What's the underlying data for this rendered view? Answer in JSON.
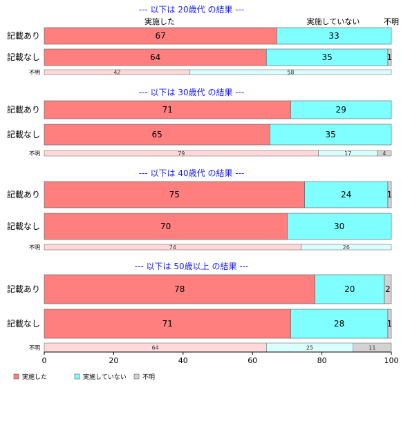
{
  "chart_data": {
    "type": "bar",
    "orientation": "horizontal-stacked-percent",
    "column_headers": [
      "実施した",
      "実施していない",
      "不明"
    ],
    "xlim": [
      0,
      100
    ],
    "xticks": [
      "0",
      "20",
      "40",
      "60",
      "80",
      "100"
    ],
    "grid": false,
    "legend_position": "bottom-left",
    "colors": [
      "#ff7f7f",
      "#7fffff",
      "#d3d3d3"
    ],
    "light_colors": [
      "#ffd9d9",
      "#d9ffff",
      "#d3d3d3"
    ],
    "legend": [
      "実施した",
      "実施していない",
      "不明"
    ],
    "groups": [
      {
        "title": "--- 以下は 20歳代 の結果 ---",
        "rows": [
          {
            "label": "記載あり",
            "values": [
              67,
              33,
              0.5
            ],
            "labels": [
              "67",
              "33",
              ""
            ]
          },
          {
            "label": "記載なし",
            "values": [
              64,
              35,
              1
            ],
            "labels": [
              "64",
              "35",
              "1"
            ]
          },
          {
            "label": "不明",
            "values": [
              42,
              58,
              0
            ],
            "labels": [
              "42",
              "58",
              ""
            ]
          }
        ]
      },
      {
        "title": "--- 以下は 30歳代 の結果 ---",
        "rows": [
          {
            "label": "記載あり",
            "values": [
              71,
              29,
              0
            ],
            "labels": [
              "71",
              "29",
              ""
            ]
          },
          {
            "label": "記載なし",
            "values": [
              65,
              35,
              0
            ],
            "labels": [
              "65",
              "35",
              ""
            ]
          },
          {
            "label": "不明",
            "values": [
              79,
              17,
              4
            ],
            "labels": [
              "79",
              "17",
              "4"
            ]
          }
        ]
      },
      {
        "title": "--- 以下は 40歳代 の結果 ---",
        "rows": [
          {
            "label": "記載あり",
            "values": [
              75,
              24,
              1
            ],
            "labels": [
              "75",
              "24",
              "1"
            ]
          },
          {
            "label": "記載なし",
            "values": [
              70,
              30,
              0.3
            ],
            "labels": [
              "70",
              "30",
              ""
            ]
          },
          {
            "label": "不明",
            "values": [
              74,
              26,
              0
            ],
            "labels": [
              "74",
              "26",
              ""
            ]
          }
        ]
      },
      {
        "title": "--- 以下は 50歳以上 の結果 ---",
        "rows": [
          {
            "label": "記載あり",
            "values": [
              78,
              20,
              2
            ],
            "labels": [
              "78",
              "20",
              "2"
            ]
          },
          {
            "label": "記載なし",
            "values": [
              71,
              28,
              1
            ],
            "labels": [
              "71",
              "28",
              "1"
            ]
          },
          {
            "label": "不明",
            "values": [
              64,
              25,
              11
            ],
            "labels": [
              "64",
              "25",
              "11"
            ]
          }
        ]
      }
    ]
  }
}
